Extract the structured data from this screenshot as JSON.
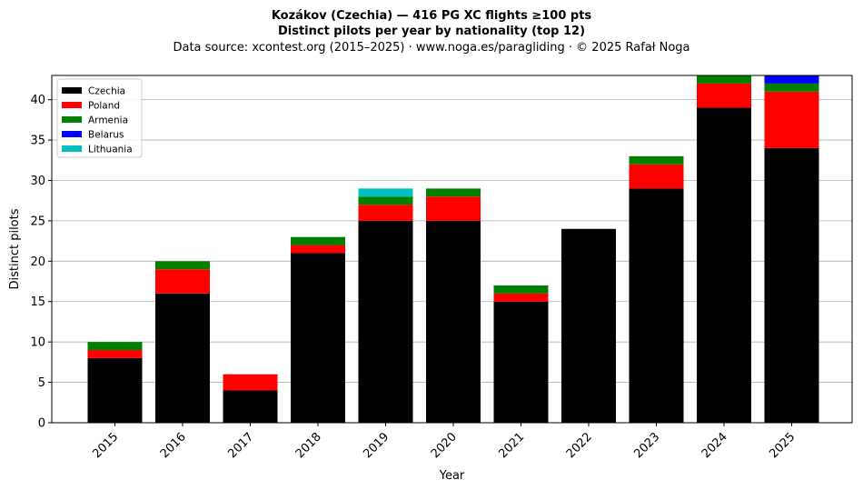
{
  "chart_data": {
    "type": "bar",
    "stacked": true,
    "title_line1": "Kozákov (Czechia)  —  416 PG XC flights ≥100 pts",
    "title_line2": "Distinct pilots per year by nationality (top 12)",
    "subtitle": "Data source: xcontest.org (2015–2025)  ·  www.noga.es/paragliding  ·  © 2025 Rafał Noga",
    "xlabel": "Year",
    "ylabel": "Distinct pilots",
    "ylim": [
      0,
      43
    ],
    "yticks": [
      0,
      5,
      10,
      15,
      20,
      25,
      30,
      35,
      40
    ],
    "grid": "y",
    "legend_position": "top-left",
    "categories": [
      "2015",
      "2016",
      "2017",
      "2018",
      "2019",
      "2020",
      "2021",
      "2022",
      "2023",
      "2024",
      "2025"
    ],
    "series": [
      {
        "name": "Czechia",
        "color": "#000000",
        "values": [
          8,
          16,
          4,
          21,
          25,
          25,
          15,
          24,
          29,
          39,
          34
        ]
      },
      {
        "name": "Poland",
        "color": "#ff0000",
        "values": [
          1,
          3,
          2,
          1,
          2,
          3,
          1,
          0,
          3,
          3,
          7
        ]
      },
      {
        "name": "Armenia",
        "color": "#008000",
        "values": [
          1,
          1,
          0,
          1,
          1,
          1,
          1,
          0,
          1,
          1,
          1
        ]
      },
      {
        "name": "Belarus",
        "color": "#0000ff",
        "values": [
          0,
          0,
          0,
          0,
          0,
          0,
          0,
          0,
          0,
          0,
          1
        ]
      },
      {
        "name": "Lithuania",
        "color": "#00bfbf",
        "values": [
          0,
          0,
          0,
          0,
          1,
          0,
          0,
          0,
          0,
          0,
          0
        ]
      }
    ]
  }
}
